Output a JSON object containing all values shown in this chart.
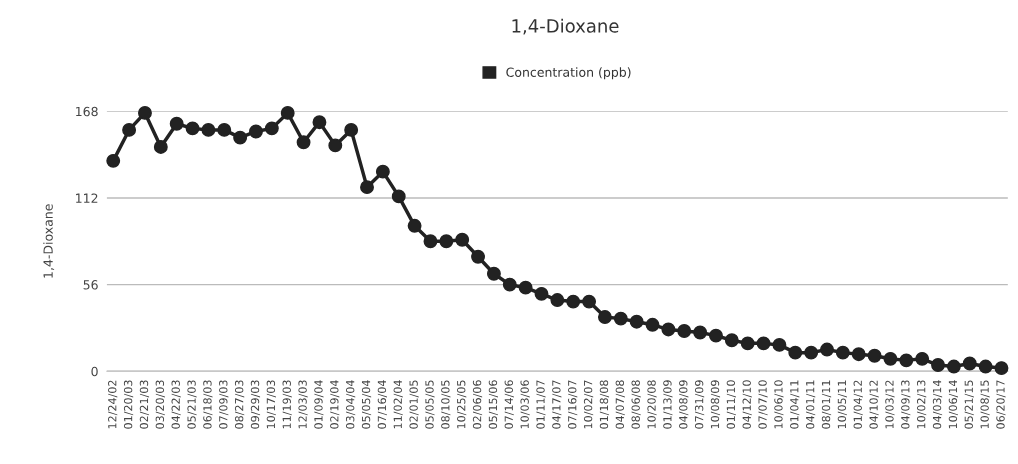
{
  "chart_data": {
    "type": "line",
    "title": "1,4-Dioxane",
    "ylabel": "1,4-Dioxane",
    "categories": [
      "12/24/02",
      "01/20/03",
      "02/21/03",
      "03/20/03",
      "04/22/03",
      "05/21/03",
      "06/18/03",
      "07/09/03",
      "08/27/03",
      "09/29/03",
      "10/17/03",
      "11/19/03",
      "12/03/03",
      "01/09/04",
      "02/19/04",
      "03/04/04",
      "05/05/04",
      "07/16/04",
      "11/02/04",
      "02/01/05",
      "05/05/05",
      "08/10/05",
      "10/25/05",
      "02/06/06",
      "05/15/06",
      "07/14/06",
      "10/03/06",
      "01/11/07",
      "04/17/07",
      "07/16/07",
      "10/02/07",
      "01/18/08",
      "04/07/08",
      "08/06/08",
      "10/20/08",
      "01/13/09",
      "04/08/09",
      "07/31/09",
      "10/08/09",
      "01/11/10",
      "04/12/10",
      "07/07/10",
      "10/06/10",
      "01/04/11",
      "04/01/11",
      "08/01/11",
      "10/05/11",
      "01/04/12",
      "04/10/12",
      "10/03/12",
      "04/09/13",
      "10/02/13",
      "04/03/14",
      "10/06/14",
      "05/21/15",
      "10/08/15",
      "06/20/17"
    ],
    "series": [
      {
        "name": "Concentration (ppb)",
        "color": "#222222",
        "values": [
          136,
          156,
          167,
          145,
          160,
          157,
          156,
          156,
          151,
          155,
          157,
          167,
          148,
          161,
          146,
          156,
          119,
          129,
          113,
          94,
          84,
          84,
          85,
          74,
          63,
          56,
          54,
          50,
          46,
          45,
          45,
          35,
          34,
          32,
          30,
          27,
          26,
          25,
          23,
          20,
          18,
          18,
          17,
          12,
          12,
          14,
          12,
          11,
          10,
          8,
          7,
          8,
          4,
          3,
          5,
          3,
          2
        ]
      }
    ],
    "ylim": [
      0,
      168
    ],
    "yticks": [
      0,
      56,
      112,
      168
    ],
    "grid": "y",
    "legend": "top",
    "marker": "circle",
    "line_style": "solid"
  }
}
